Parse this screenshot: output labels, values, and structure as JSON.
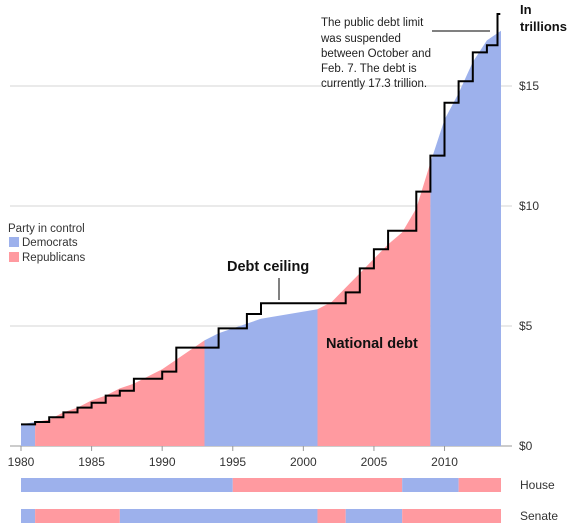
{
  "chart_data": {
    "type": "area",
    "unit_label": [
      "In",
      "trillions"
    ],
    "x_ticks": [
      1980,
      1985,
      1990,
      1995,
      2000,
      2005,
      2010
    ],
    "y_ticks": [
      {
        "value": 0,
        "label": "$0"
      },
      {
        "value": 5,
        "label": "$5"
      },
      {
        "value": 10,
        "label": "$10"
      },
      {
        "value": 15,
        "label": "$15"
      }
    ],
    "xlim": [
      1980,
      2014
    ],
    "ylim": [
      0,
      18
    ],
    "grid": true,
    "legend": {
      "title": "Party in control",
      "placement": "left",
      "items": [
        {
          "name": "Democrats",
          "color": "#9db1ec"
        },
        {
          "name": "Republicans",
          "color": "#ff9aa0"
        }
      ]
    },
    "colors": {
      "democrat": "#9db1ec",
      "republican": "#ff9aa0",
      "ceiling": "#000000"
    },
    "series": [
      {
        "name": "National debt",
        "x": [
          1980,
          1981,
          1982,
          1983,
          1984,
          1985,
          1986,
          1987,
          1988,
          1989,
          1990,
          1991,
          1992,
          1993,
          1994,
          1995,
          1996,
          1997,
          1998,
          1999,
          2000,
          2001,
          2002,
          2003,
          2004,
          2005,
          2006,
          2007,
          2008,
          2009,
          2010,
          2011,
          2012,
          2013,
          2014
        ],
        "values": [
          0.9,
          1.0,
          1.1,
          1.4,
          1.6,
          1.9,
          2.1,
          2.4,
          2.6,
          2.9,
          3.2,
          3.6,
          4.0,
          4.4,
          4.7,
          4.9,
          5.1,
          5.3,
          5.4,
          5.5,
          5.6,
          5.7,
          6.0,
          6.6,
          7.2,
          7.8,
          8.4,
          8.9,
          9.9,
          11.8,
          13.6,
          14.7,
          16.0,
          16.9,
          17.3
        ]
      },
      {
        "name": "Debt ceiling",
        "step_x": [
          1980,
          1981,
          1982,
          1983,
          1984,
          1985,
          1986,
          1987,
          1988,
          1989,
          1990,
          1991,
          1993,
          1994,
          1996,
          1997,
          2002,
          2003,
          2004,
          2005,
          2006,
          2007,
          2008,
          2009,
          2010,
          2011,
          2012,
          2013,
          2013.75
        ],
        "step_y": [
          0.9,
          1.0,
          1.2,
          1.4,
          1.6,
          1.8,
          2.1,
          2.3,
          2.8,
          2.8,
          3.1,
          4.1,
          4.1,
          4.9,
          5.5,
          5.95,
          5.95,
          6.4,
          7.4,
          8.2,
          8.97,
          8.97,
          10.6,
          12.1,
          14.3,
          15.2,
          16.4,
          16.7,
          18.0
        ]
      }
    ],
    "party_shading": [
      {
        "start": 1980,
        "end": 1981,
        "party": "democrat"
      },
      {
        "start": 1981,
        "end": 1993,
        "party": "republican"
      },
      {
        "start": 1993,
        "end": 2001,
        "party": "democrat"
      },
      {
        "start": 2001,
        "end": 2009,
        "party": "republican"
      },
      {
        "start": 2009,
        "end": 2014,
        "party": "democrat"
      }
    ],
    "annotations": {
      "ceiling_label": "Debt ceiling",
      "debt_label": "National debt",
      "note": [
        "The public debt limit",
        "was suspended",
        "between October and",
        "Feb. 7. The debt is",
        "currently 17.3 trillion."
      ]
    },
    "control_strips": [
      {
        "name": "House",
        "segments": [
          {
            "start": 1980,
            "end": 1995,
            "party": "democrat"
          },
          {
            "start": 1995,
            "end": 2007,
            "party": "republican"
          },
          {
            "start": 2007,
            "end": 2011,
            "party": "democrat"
          },
          {
            "start": 2011,
            "end": 2014,
            "party": "republican"
          }
        ]
      },
      {
        "name": "Senate",
        "segments": [
          {
            "start": 1980,
            "end": 1981,
            "party": "democrat"
          },
          {
            "start": 1981,
            "end": 1987,
            "party": "republican"
          },
          {
            "start": 1987,
            "end": 2001,
            "party": "democrat"
          },
          {
            "start": 2001,
            "end": 2003,
            "party": "republican"
          },
          {
            "start": 2003,
            "end": 2007,
            "party": "democrat"
          },
          {
            "start": 2007,
            "end": 2014,
            "party": "republican"
          }
        ]
      }
    ]
  }
}
